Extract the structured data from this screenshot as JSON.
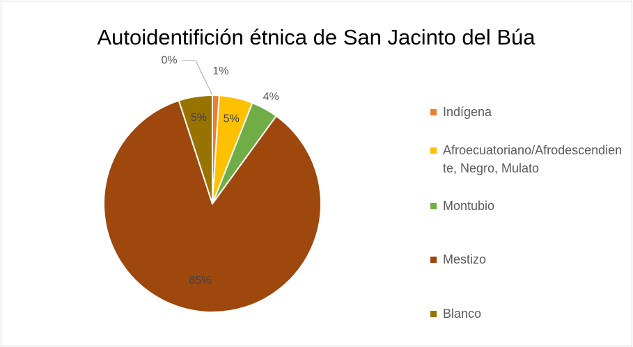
{
  "chart_data": {
    "type": "pie",
    "title": "Autoidentifición étnica de San Jacinto del Búa",
    "categories": [
      null,
      "Indígena",
      "Afroecuatoriano/Afrodescendiente, Negro, Mulato",
      "Montubio",
      "Mestizo",
      "Blanco"
    ],
    "values": [
      0,
      1,
      5,
      4,
      85,
      5
    ],
    "value_labels": [
      "0%",
      "1%",
      "5%",
      "4%",
      "85%",
      "5%"
    ],
    "colors": [
      "#a5a5a5",
      "#ed7d31",
      "#ffc000",
      "#70ad47",
      "#9e480e",
      "#997300"
    ],
    "legend": "right"
  }
}
